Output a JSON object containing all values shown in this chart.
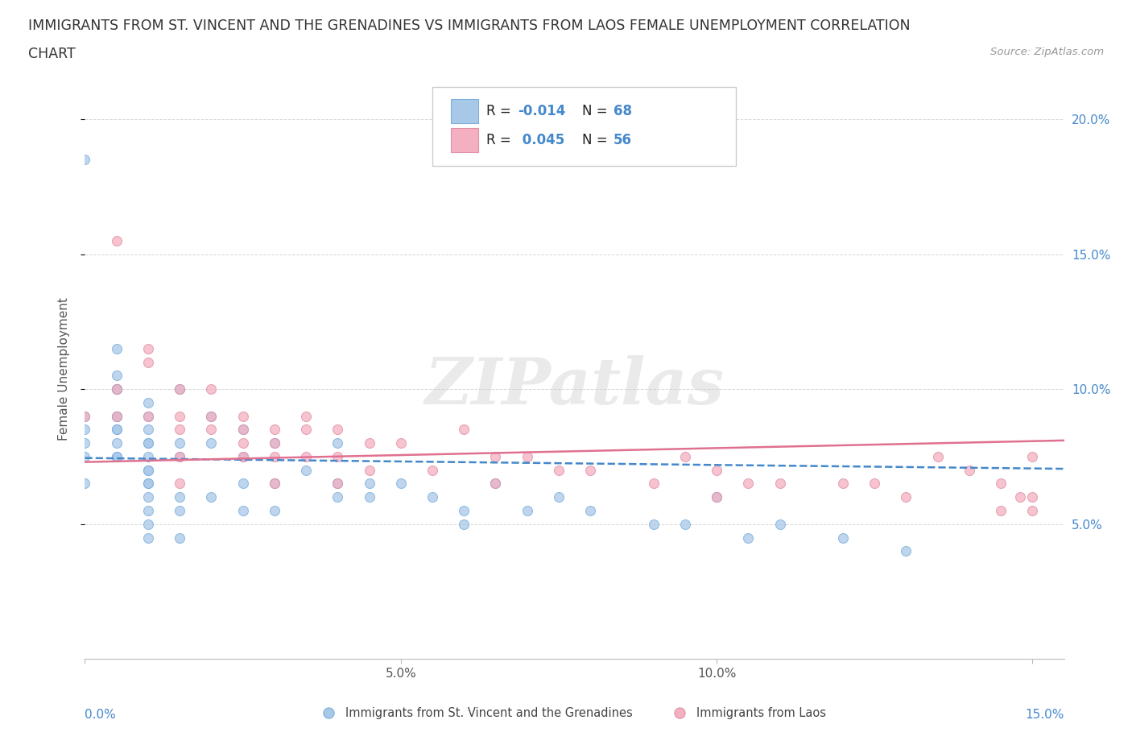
{
  "title_line1": "IMMIGRANTS FROM ST. VINCENT AND THE GRENADINES VS IMMIGRANTS FROM LAOS FEMALE UNEMPLOYMENT CORRELATION",
  "title_line2": "CHART",
  "source_text": "Source: ZipAtlas.com",
  "ylabel": "Female Unemployment",
  "xlim": [
    0.0,
    0.155
  ],
  "ylim": [
    0.0,
    0.215
  ],
  "xtick_vals": [
    0.0,
    0.05,
    0.1,
    0.15
  ],
  "xtick_labels_inner": [
    "",
    "5.0%",
    "10.0%",
    ""
  ],
  "xtick_edge_left": "0.0%",
  "xtick_edge_right": "15.0%",
  "ytick_vals": [
    0.05,
    0.1,
    0.15,
    0.2
  ],
  "ytick_labels": [
    "5.0%",
    "10.0%",
    "15.0%",
    "20.0%"
  ],
  "watermark": "ZIPatlas",
  "color_blue": "#a8c8e8",
  "color_pink": "#f4afc0",
  "color_blue_line": "#4488cc",
  "color_pink_line": "#e07090",
  "color_blue_label": "#4488cc",
  "scatter1_x": [
    0.0,
    0.0,
    0.0,
    0.0,
    0.0,
    0.0,
    0.005,
    0.005,
    0.005,
    0.005,
    0.005,
    0.005,
    0.005,
    0.005,
    0.005,
    0.005,
    0.005,
    0.01,
    0.01,
    0.01,
    0.01,
    0.01,
    0.01,
    0.01,
    0.01,
    0.01,
    0.01,
    0.01,
    0.01,
    0.01,
    0.01,
    0.015,
    0.015,
    0.015,
    0.015,
    0.015,
    0.015,
    0.02,
    0.02,
    0.02,
    0.025,
    0.025,
    0.025,
    0.025,
    0.03,
    0.03,
    0.03,
    0.035,
    0.04,
    0.04,
    0.04,
    0.045,
    0.045,
    0.05,
    0.055,
    0.06,
    0.06,
    0.065,
    0.07,
    0.075,
    0.08,
    0.09,
    0.095,
    0.1,
    0.105,
    0.11,
    0.12,
    0.13
  ],
  "scatter1_y": [
    0.185,
    0.09,
    0.085,
    0.08,
    0.075,
    0.065,
    0.115,
    0.105,
    0.1,
    0.1,
    0.09,
    0.09,
    0.085,
    0.085,
    0.08,
    0.075,
    0.075,
    0.095,
    0.09,
    0.085,
    0.08,
    0.08,
    0.075,
    0.07,
    0.07,
    0.065,
    0.065,
    0.06,
    0.055,
    0.05,
    0.045,
    0.1,
    0.08,
    0.075,
    0.06,
    0.055,
    0.045,
    0.09,
    0.08,
    0.06,
    0.085,
    0.075,
    0.065,
    0.055,
    0.08,
    0.065,
    0.055,
    0.07,
    0.08,
    0.065,
    0.06,
    0.065,
    0.06,
    0.065,
    0.06,
    0.055,
    0.05,
    0.065,
    0.055,
    0.06,
    0.055,
    0.05,
    0.05,
    0.06,
    0.045,
    0.05,
    0.045,
    0.04
  ],
  "scatter2_x": [
    0.0,
    0.005,
    0.005,
    0.005,
    0.01,
    0.01,
    0.01,
    0.015,
    0.015,
    0.015,
    0.015,
    0.015,
    0.02,
    0.02,
    0.02,
    0.025,
    0.025,
    0.025,
    0.025,
    0.03,
    0.03,
    0.03,
    0.03,
    0.035,
    0.035,
    0.035,
    0.04,
    0.04,
    0.04,
    0.045,
    0.045,
    0.05,
    0.055,
    0.06,
    0.065,
    0.065,
    0.07,
    0.075,
    0.08,
    0.09,
    0.095,
    0.1,
    0.1,
    0.105,
    0.11,
    0.12,
    0.125,
    0.13,
    0.135,
    0.14,
    0.145,
    0.145,
    0.148,
    0.15,
    0.15,
    0.15
  ],
  "scatter2_y": [
    0.09,
    0.155,
    0.1,
    0.09,
    0.115,
    0.11,
    0.09,
    0.1,
    0.09,
    0.085,
    0.075,
    0.065,
    0.1,
    0.09,
    0.085,
    0.09,
    0.085,
    0.08,
    0.075,
    0.085,
    0.08,
    0.075,
    0.065,
    0.09,
    0.085,
    0.075,
    0.085,
    0.075,
    0.065,
    0.08,
    0.07,
    0.08,
    0.07,
    0.085,
    0.075,
    0.065,
    0.075,
    0.07,
    0.07,
    0.065,
    0.075,
    0.07,
    0.06,
    0.065,
    0.065,
    0.065,
    0.065,
    0.06,
    0.075,
    0.07,
    0.065,
    0.055,
    0.06,
    0.055,
    0.06,
    0.075
  ],
  "trendline1_x": [
    0.0,
    0.155
  ],
  "trendline1_y": [
    0.0745,
    0.0705
  ],
  "trendline2_x": [
    0.0,
    0.155
  ],
  "trendline2_y": [
    0.073,
    0.081
  ],
  "grid_color": "#cccccc",
  "background_color": "#ffffff",
  "title_fontsize": 12.5,
  "axis_label_fontsize": 11,
  "tick_fontsize": 11,
  "source_fontsize": 9.5
}
